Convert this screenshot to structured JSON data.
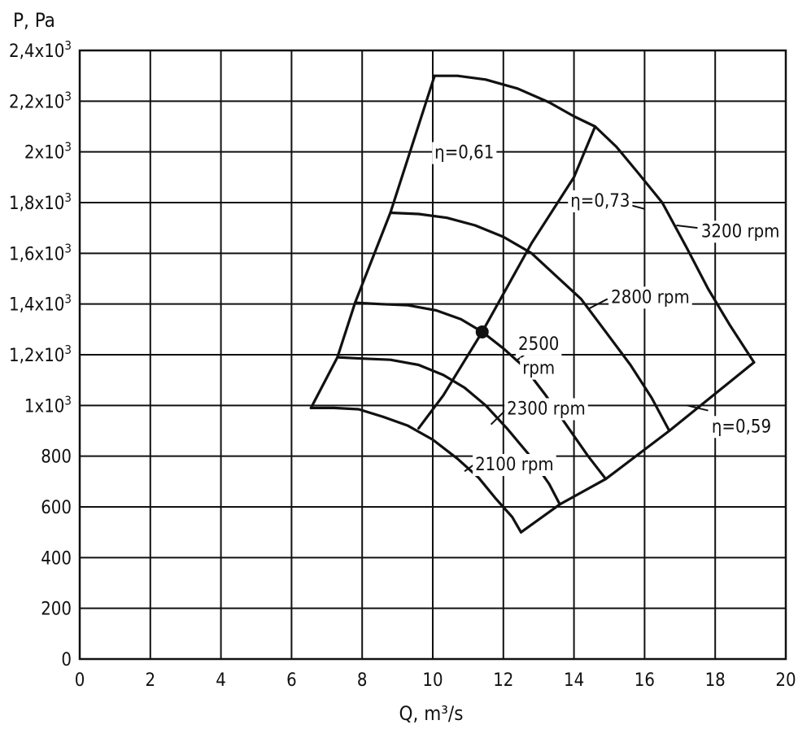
{
  "chart_data": {
    "type": "line",
    "xlabel": "Q, m³/s",
    "ylabel": "P, Pa",
    "xlim": [
      0,
      20
    ],
    "ylim": [
      0,
      2400
    ],
    "grid": true,
    "x_ticks": [
      {
        "value": 0,
        "label": "0"
      },
      {
        "value": 2,
        "label": "2"
      },
      {
        "value": 4,
        "label": "4"
      },
      {
        "value": 6,
        "label": "6"
      },
      {
        "value": 8,
        "label": "8"
      },
      {
        "value": 10,
        "label": "10"
      },
      {
        "value": 12,
        "label": "12"
      },
      {
        "value": 14,
        "label": "14"
      },
      {
        "value": 16,
        "label": "16"
      },
      {
        "value": 18,
        "label": "18"
      },
      {
        "value": 20,
        "label": "20"
      }
    ],
    "y_ticks": [
      {
        "value": 0,
        "base": "0",
        "exp": ""
      },
      {
        "value": 200,
        "base": "200",
        "exp": ""
      },
      {
        "value": 400,
        "base": "400",
        "exp": ""
      },
      {
        "value": 600,
        "base": "600",
        "exp": ""
      },
      {
        "value": 800,
        "base": "800",
        "exp": ""
      },
      {
        "value": 1000,
        "base": "1x10",
        "exp": "3"
      },
      {
        "value": 1200,
        "base": "1,2x10",
        "exp": "3"
      },
      {
        "value": 1400,
        "base": "1,4x10",
        "exp": "3"
      },
      {
        "value": 1600,
        "base": "1,6x10",
        "exp": "3"
      },
      {
        "value": 1800,
        "base": "1,8x10",
        "exp": "3"
      },
      {
        "value": 2000,
        "base": "2x10",
        "exp": "3"
      },
      {
        "value": 2200,
        "base": "2,2x10",
        "exp": "3"
      },
      {
        "value": 2400,
        "base": "2,4x10",
        "exp": "3"
      }
    ],
    "series": [
      {
        "name": "3200 rpm",
        "points": [
          [
            10.05,
            2300
          ],
          [
            10.7,
            2300
          ],
          [
            11.5,
            2285
          ],
          [
            12.4,
            2250
          ],
          [
            13.3,
            2195
          ],
          [
            14,
            2140
          ],
          [
            14.6,
            2100
          ],
          [
            15.2,
            2020
          ],
          [
            15.8,
            1920
          ],
          [
            16.5,
            1800
          ],
          [
            17.2,
            1620
          ],
          [
            17.8,
            1460
          ],
          [
            18.4,
            1320
          ],
          [
            19.1,
            1170
          ]
        ]
      },
      {
        "name": "2800 rpm",
        "points": [
          [
            8.8,
            1760
          ],
          [
            9.6,
            1755
          ],
          [
            10.4,
            1740
          ],
          [
            11.2,
            1710
          ],
          [
            12,
            1665
          ],
          [
            12.8,
            1600
          ],
          [
            13.5,
            1510
          ],
          [
            14.2,
            1420
          ],
          [
            14.9,
            1290
          ],
          [
            15.6,
            1160
          ],
          [
            16.2,
            1030
          ],
          [
            16.7,
            900
          ]
        ]
      },
      {
        "name": "2500 rpm",
        "points": [
          [
            7.8,
            1405
          ],
          [
            8.5,
            1400
          ],
          [
            9.3,
            1395
          ],
          [
            10.1,
            1375
          ],
          [
            10.8,
            1340
          ],
          [
            11.4,
            1290
          ],
          [
            12,
            1225
          ],
          [
            12.6,
            1150
          ],
          [
            13.2,
            1040
          ],
          [
            13.8,
            920
          ],
          [
            14.4,
            800
          ],
          [
            14.9,
            710
          ]
        ]
      },
      {
        "name": "2300 rpm",
        "points": [
          [
            7.3,
            1190
          ],
          [
            8,
            1185
          ],
          [
            8.8,
            1180
          ],
          [
            9.6,
            1160
          ],
          [
            10.3,
            1120
          ],
          [
            10.9,
            1070
          ],
          [
            11.5,
            1000
          ],
          [
            12.1,
            910
          ],
          [
            12.7,
            810
          ],
          [
            13.3,
            690
          ],
          [
            13.6,
            610
          ]
        ]
      },
      {
        "name": "2100 rpm",
        "points": [
          [
            6.55,
            990
          ],
          [
            7.2,
            990
          ],
          [
            7.9,
            985
          ],
          [
            8.6,
            955
          ],
          [
            9.3,
            920
          ],
          [
            10,
            865
          ],
          [
            10.7,
            790
          ],
          [
            11.3,
            715
          ],
          [
            11.8,
            630
          ],
          [
            12.25,
            560
          ],
          [
            12.5,
            500
          ]
        ]
      },
      {
        "name": "η=0,61",
        "points": [
          [
            6.55,
            990
          ],
          [
            7.3,
            1190
          ],
          [
            7.8,
            1405
          ],
          [
            8.8,
            1760
          ],
          [
            10.05,
            2300
          ]
        ]
      },
      {
        "name": "η=0,73",
        "points": [
          [
            9.6,
            910
          ],
          [
            10.3,
            1040
          ],
          [
            11.4,
            1290
          ],
          [
            12.8,
            1640
          ],
          [
            14,
            1900
          ],
          [
            14.6,
            2100
          ]
        ]
      },
      {
        "name": "η=0,59",
        "points": [
          [
            12.5,
            500
          ],
          [
            13.6,
            610
          ],
          [
            14.9,
            710
          ],
          [
            16.7,
            900
          ],
          [
            19.1,
            1170
          ]
        ]
      }
    ],
    "operating_point": {
      "x": 11.4,
      "y": 1290
    },
    "labels": [
      {
        "text": "η=0,61",
        "x": 10.05,
        "y": 2000,
        "anchor": "start",
        "leader": [
          [
            11.3,
            2000
          ],
          [
            11.65,
            2000
          ]
        ]
      },
      {
        "text": "η=0,73",
        "x": 13.9,
        "y": 1810,
        "anchor": "start",
        "leader": [
          [
            15.6,
            1790
          ],
          [
            16,
            1775
          ]
        ]
      },
      {
        "text": "3200 rpm",
        "x": 17.6,
        "y": 1690,
        "anchor": "start",
        "leader": [
          [
            16.9,
            1710
          ],
          [
            17.5,
            1700
          ]
        ]
      },
      {
        "text": "2800 rpm",
        "x": 15.05,
        "y": 1430,
        "anchor": "start",
        "leader": [
          [
            14.4,
            1380
          ],
          [
            14.95,
            1420
          ]
        ]
      },
      {
        "text": "2500",
        "x": 13.0,
        "y": 1245,
        "anchor": "middle",
        "leader": [
          [
            12.4,
            1180
          ],
          [
            12.9,
            1230
          ]
        ]
      },
      {
        "text": "rpm",
        "x": 13.0,
        "y": 1150,
        "anchor": "middle",
        "leader": [
          [
            14.1,
            1200
          ],
          [
            14.9,
            1200
          ]
        ]
      },
      {
        "text": "2300 rpm",
        "x": 12.1,
        "y": 990,
        "anchor": "start",
        "leader": [
          [
            11.65,
            925
          ],
          [
            12.05,
            980
          ]
        ]
      },
      {
        "text": "2100 rpm",
        "x": 11.2,
        "y": 770,
        "anchor": "start",
        "leader": [
          [
            10.9,
            740
          ],
          [
            11.2,
            770
          ]
        ]
      },
      {
        "text": "η=0,59",
        "x": 17.9,
        "y": 920,
        "anchor": "start",
        "leader": [
          [
            17.2,
            1000
          ],
          [
            17.8,
            980
          ]
        ]
      }
    ]
  }
}
